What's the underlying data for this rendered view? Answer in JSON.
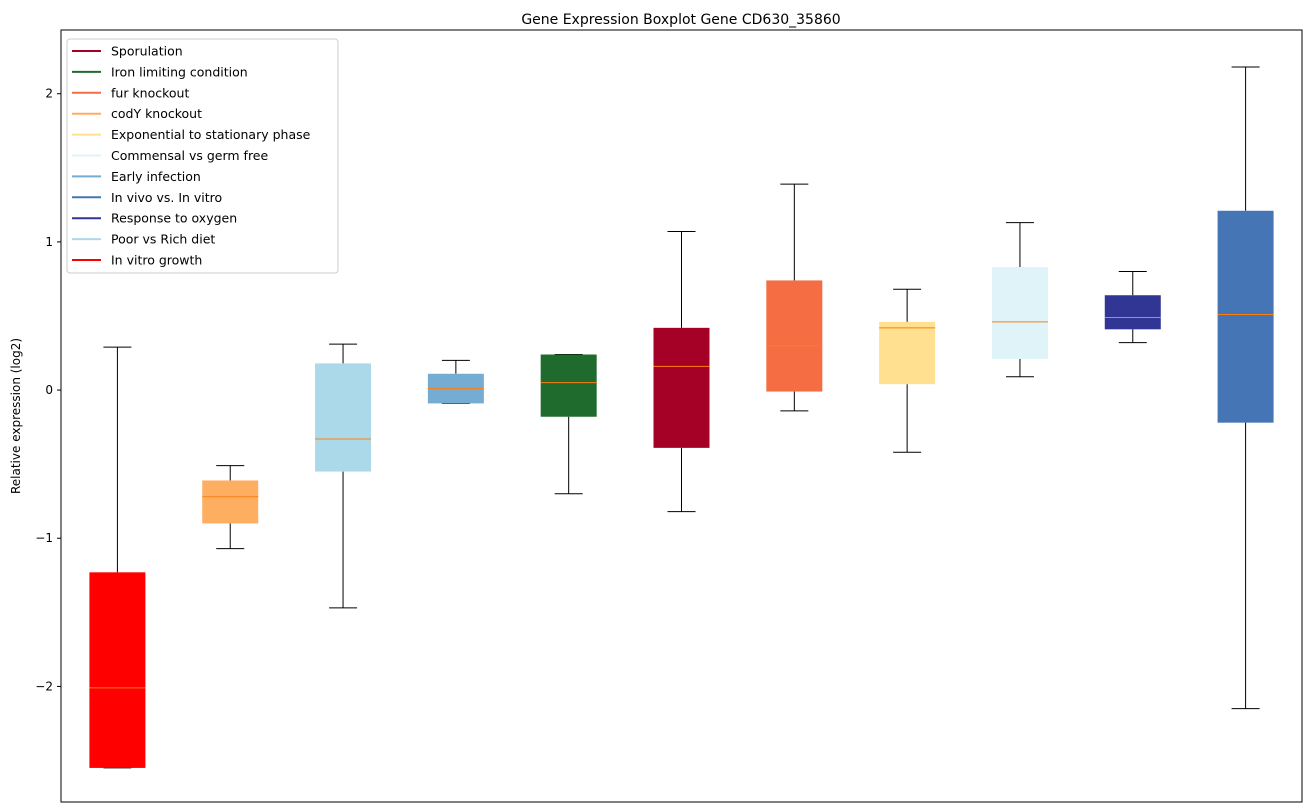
{
  "chart_data": {
    "type": "box",
    "title": "Gene Expression Boxplot Gene CD630_35860",
    "xlabel": "",
    "ylabel": "Relative expression (log2)",
    "ylim": [
      -2.78,
      2.43
    ],
    "yticks": [
      -2,
      -1,
      0,
      1,
      2
    ],
    "ytick_labels": [
      "−2",
      "−1",
      "0",
      "1",
      "2"
    ],
    "grid": false,
    "legend_position": "top-left",
    "median_color": "#ff7f0e",
    "series": [
      {
        "name": "In vitro growth",
        "color": "#ff0000",
        "whislo": -2.55,
        "q1": -2.55,
        "med": -2.01,
        "q3": -1.23,
        "whishi": 0.29
      },
      {
        "name": "codY knockout",
        "color": "#fdae61",
        "whislo": -1.07,
        "q1": -0.9,
        "med": -0.72,
        "q3": -0.61,
        "whishi": -0.51
      },
      {
        "name": "Poor vs Rich diet",
        "color": "#abd9e9",
        "whislo": -1.47,
        "q1": -0.55,
        "med": -0.33,
        "q3": 0.18,
        "whishi": 0.31
      },
      {
        "name": "Early infection",
        "color": "#74add1",
        "whislo": -0.09,
        "q1": -0.09,
        "med": 0.01,
        "q3": 0.11,
        "whishi": 0.2
      },
      {
        "name": "Iron limiting condition",
        "color": "#1f6b2d",
        "whislo": -0.7,
        "q1": -0.18,
        "med": 0.05,
        "q3": 0.24,
        "whishi": 0.24
      },
      {
        "name": "Sporulation",
        "color": "#a50026",
        "whislo": -0.82,
        "q1": -0.39,
        "med": 0.16,
        "q3": 0.42,
        "whishi": 1.07
      },
      {
        "name": "fur knockout",
        "color": "#f46d43",
        "whislo": -0.14,
        "q1": -0.01,
        "med": 0.3,
        "q3": 0.74,
        "whishi": 1.39
      },
      {
        "name": "Exponential to stationary phase",
        "color": "#fee090",
        "whislo": -0.42,
        "q1": 0.04,
        "med": 0.42,
        "q3": 0.46,
        "whishi": 0.68
      },
      {
        "name": "Commensal vs germ free",
        "color": "#e0f3f8",
        "whislo": 0.09,
        "q1": 0.21,
        "med": 0.46,
        "q3": 0.83,
        "whishi": 1.13
      },
      {
        "name": "Response to oxygen",
        "color": "#313695",
        "whislo": 0.32,
        "q1": 0.41,
        "med": 0.49,
        "q3": 0.64,
        "whishi": 0.8
      },
      {
        "name": "In vivo vs. In vitro",
        "color": "#4575b4",
        "whislo": -2.15,
        "q1": -0.22,
        "med": 0.51,
        "q3": 1.21,
        "whishi": 2.18
      }
    ],
    "legend": [
      {
        "label": "Sporulation",
        "color": "#a50026"
      },
      {
        "label": "Iron limiting condition",
        "color": "#1f6b2d"
      },
      {
        "label": "fur knockout",
        "color": "#f46d43"
      },
      {
        "label": "codY knockout",
        "color": "#fdae61"
      },
      {
        "label": "Exponential to stationary phase",
        "color": "#fee090"
      },
      {
        "label": "Commensal vs germ free",
        "color": "#e0f3f8"
      },
      {
        "label": "Early infection",
        "color": "#74add1"
      },
      {
        "label": "In vivo vs. In vitro",
        "color": "#4575b4"
      },
      {
        "label": "Response to oxygen",
        "color": "#313695"
      },
      {
        "label": "Poor vs Rich diet",
        "color": "#abd9e9"
      },
      {
        "label": "In vitro growth",
        "color": "#ff0000"
      }
    ]
  }
}
